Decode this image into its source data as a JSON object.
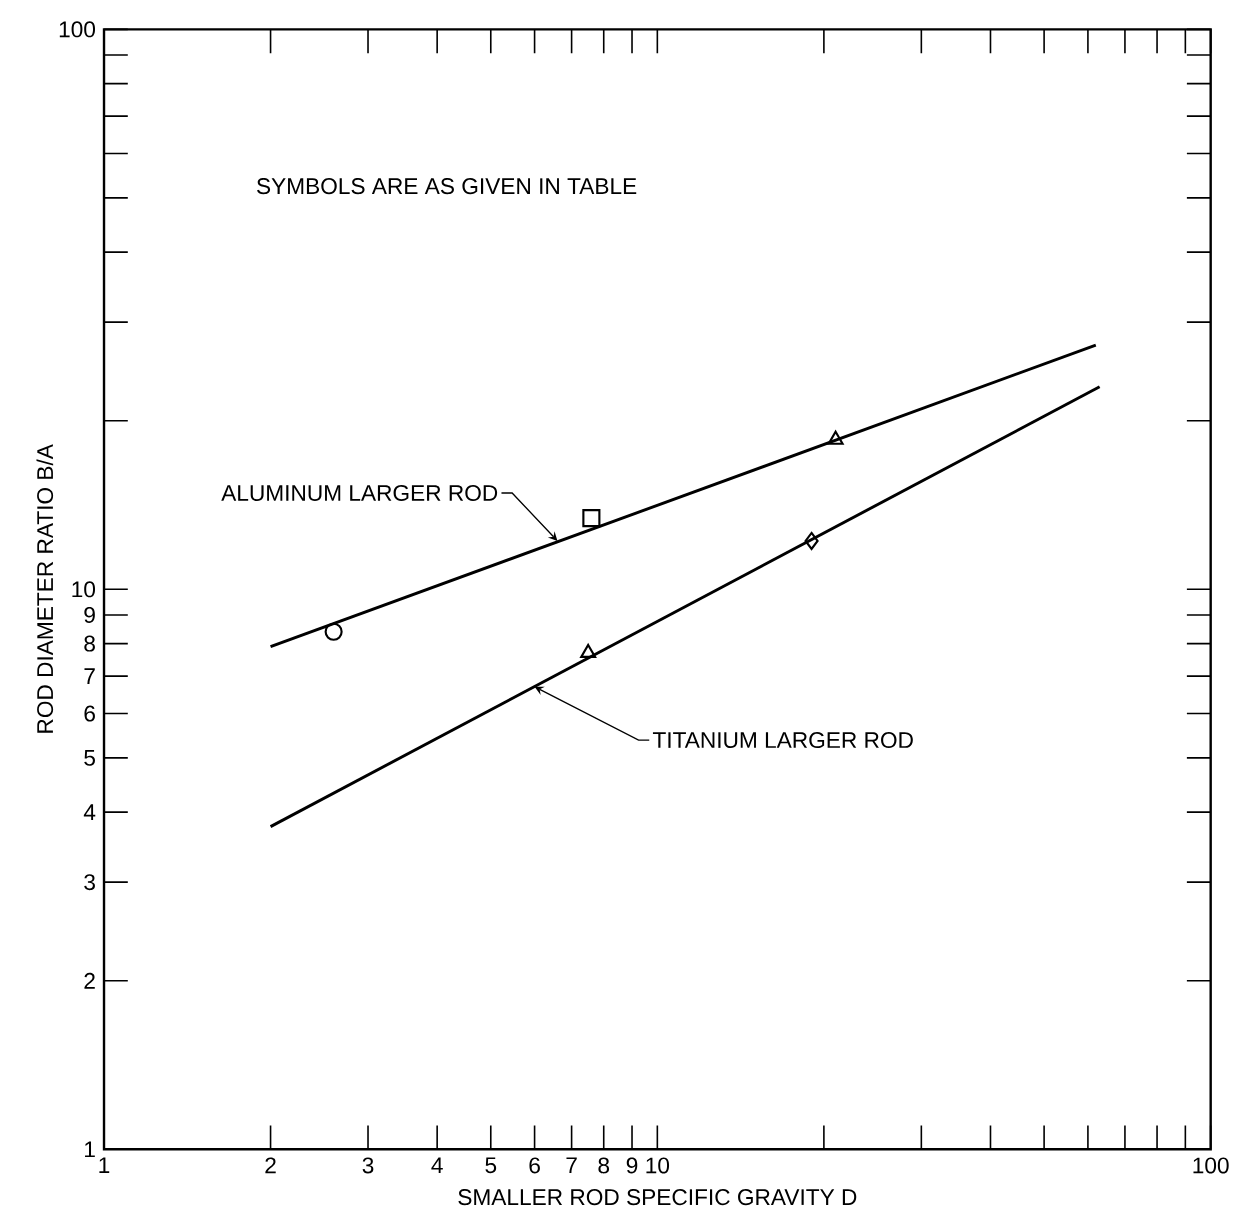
{
  "chart_data": {
    "type": "line",
    "xlabel": "SMALLER ROD SPECIFIC GRAVITY D",
    "ylabel": "ROD DIAMETER RATIO B/A",
    "log": "xy",
    "xlim": [
      1,
      100
    ],
    "ylim": [
      1,
      100
    ],
    "xticks": [
      1,
      2,
      3,
      4,
      5,
      6,
      7,
      8,
      9,
      10,
      {
        "value": 20,
        "label": null
      },
      {
        "value": 30,
        "label": null
      },
      {
        "value": 40,
        "label": null
      },
      {
        "value": 50,
        "label": null
      },
      {
        "value": 60,
        "label": null
      },
      {
        "value": 70,
        "label": null
      },
      {
        "value": 80,
        "label": null
      },
      {
        "value": 90,
        "label": null
      },
      100
    ],
    "yticks": [
      1,
      2,
      3,
      4,
      5,
      6,
      7,
      8,
      9,
      10,
      {
        "value": 20,
        "label": null
      },
      {
        "value": 30,
        "label": null
      },
      {
        "value": 40,
        "label": null
      },
      {
        "value": 50,
        "label": null
      },
      {
        "value": 60,
        "label": null
      },
      {
        "value": 70,
        "label": null
      },
      {
        "value": 80,
        "label": null
      },
      {
        "value": 90,
        "label": null
      },
      100
    ],
    "marker": "none",
    "line_style": "solid",
    "series": [
      {
        "color": "#000000",
        "x": [
          2,
          62
        ],
        "values": [
          7.9,
          27.3
        ]
      },
      {
        "color": "#000000",
        "x": [
          2,
          63
        ],
        "values": [
          3.77,
          23
        ]
      },
      {
        "type": "scatter",
        "marker": "circle",
        "color": "#000000",
        "x": [
          2.6
        ],
        "values": [
          8.4
        ]
      },
      {
        "type": "scatter",
        "marker": "square",
        "color": "#000000",
        "x": [
          7.6
        ],
        "values": [
          13.4
        ]
      },
      {
        "type": "scatter",
        "marker": "triangle",
        "color": "#000000",
        "x": [
          21,
          7.5
        ],
        "values": [
          18.5,
          7.7
        ]
      },
      {
        "type": "scatter",
        "marker": "diamond",
        "color": "#000000",
        "x": [
          19
        ],
        "values": [
          12.2
        ]
      }
    ],
    "annotations": [
      "SYMBOLS ARE AS GIVEN IN TABLE",
      {
        "text": "ALUMINUM LARGER ROD",
        "x": 6.6,
        "y": 12.2
      },
      {
        "text": "TITANIUM LARGER ROD",
        "x": 6.0,
        "y": 6.7
      }
    ]
  }
}
